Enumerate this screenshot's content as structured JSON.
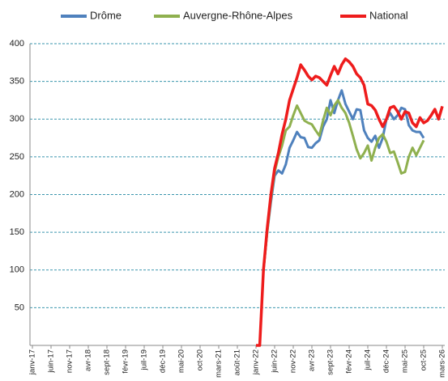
{
  "chart_data": {
    "type": "line",
    "categories": [
      "janv-17",
      null,
      null,
      null,
      null,
      "juin-17",
      null,
      null,
      null,
      null,
      "nov-17",
      null,
      null,
      null,
      null,
      "avr-18",
      null,
      null,
      null,
      null,
      "sept-18",
      null,
      null,
      null,
      null,
      "févr-19",
      null,
      null,
      null,
      null,
      "juil-19",
      null,
      null,
      null,
      null,
      "déc-19",
      null,
      null,
      null,
      null,
      "mai-20",
      null,
      null,
      null,
      null,
      "oct-20",
      null,
      null,
      null,
      null,
      "mars-21",
      null,
      null,
      null,
      null,
      "août-21",
      null,
      null,
      null,
      null,
      "janv-22",
      null,
      null,
      null,
      null,
      "juin-22",
      null,
      null,
      null,
      null,
      "nov-22",
      null,
      null,
      null,
      null,
      "avr-23",
      null,
      null,
      null,
      null,
      "sept-23",
      null,
      null,
      null,
      null,
      "févr-24",
      null,
      null,
      null,
      null,
      "juil-24",
      null,
      null,
      null,
      null,
      "déc-24",
      null,
      null,
      null,
      null,
      "mai-25",
      null,
      null,
      null,
      null,
      "oct-25",
      null,
      null,
      null,
      null,
      "mars-26"
    ],
    "series": [
      {
        "name": "Drôme",
        "color": "#4f81bd",
        "values": [
          null,
          null,
          null,
          null,
          null,
          null,
          null,
          null,
          null,
          null,
          null,
          null,
          null,
          null,
          null,
          null,
          null,
          null,
          null,
          null,
          null,
          null,
          null,
          null,
          null,
          null,
          null,
          null,
          null,
          null,
          null,
          null,
          null,
          null,
          null,
          null,
          null,
          null,
          null,
          null,
          null,
          null,
          null,
          null,
          null,
          null,
          null,
          null,
          null,
          null,
          null,
          null,
          null,
          null,
          null,
          null,
          null,
          null,
          null,
          null,
          null,
          null,
          100,
          150,
          190,
          225,
          232,
          228,
          240,
          262,
          272,
          283,
          276,
          275,
          263,
          262,
          268,
          272,
          290,
          300,
          325,
          308,
          325,
          338,
          320,
          310,
          300,
          313,
          312,
          285,
          275,
          270,
          278,
          262,
          275,
          300,
          308,
          300,
          305,
          315,
          313,
          292,
          285,
          283,
          283,
          275,
          null,
          null,
          null,
          null,
          null
        ]
      },
      {
        "name": "Auvergne-Rhône-Alpes",
        "color": "#8fb04f",
        "values": [
          null,
          null,
          null,
          null,
          null,
          null,
          null,
          null,
          null,
          null,
          null,
          null,
          null,
          null,
          null,
          null,
          null,
          null,
          null,
          null,
          null,
          null,
          null,
          null,
          null,
          null,
          null,
          null,
          null,
          null,
          null,
          null,
          null,
          null,
          null,
          null,
          null,
          null,
          null,
          null,
          null,
          null,
          null,
          null,
          null,
          null,
          null,
          null,
          null,
          null,
          null,
          null,
          null,
          null,
          null,
          null,
          null,
          null,
          null,
          null,
          null,
          null,
          100,
          150,
          195,
          230,
          250,
          265,
          285,
          290,
          305,
          318,
          308,
          298,
          295,
          293,
          285,
          278,
          298,
          315,
          305,
          318,
          325,
          315,
          308,
          295,
          278,
          260,
          248,
          255,
          265,
          245,
          262,
          275,
          280,
          270,
          255,
          257,
          243,
          228,
          230,
          250,
          262,
          252,
          262,
          272,
          null,
          null,
          null,
          null,
          null
        ]
      },
      {
        "name": "National",
        "color": "#ee1c1c",
        "values": [
          null,
          null,
          null,
          null,
          null,
          null,
          null,
          null,
          null,
          null,
          null,
          null,
          null,
          null,
          null,
          null,
          null,
          null,
          null,
          null,
          null,
          null,
          null,
          null,
          null,
          null,
          null,
          null,
          null,
          null,
          null,
          null,
          null,
          null,
          null,
          null,
          null,
          null,
          null,
          null,
          null,
          null,
          null,
          null,
          null,
          null,
          null,
          null,
          null,
          null,
          null,
          null,
          null,
          null,
          null,
          null,
          null,
          null,
          null,
          null,
          0,
          0,
          100,
          155,
          200,
          235,
          255,
          280,
          300,
          325,
          340,
          355,
          372,
          365,
          357,
          352,
          357,
          355,
          350,
          345,
          358,
          370,
          360,
          372,
          380,
          376,
          370,
          360,
          355,
          345,
          320,
          318,
          312,
          300,
          290,
          300,
          315,
          317,
          310,
          300,
          310,
          308,
          295,
          290,
          302,
          295,
          298,
          305,
          313,
          300,
          317
        ]
      }
    ],
    "ylim": [
      0,
      400
    ],
    "yticks": [
      50,
      100,
      150,
      200,
      250,
      300,
      350,
      400
    ],
    "grid": true,
    "legend": "top"
  }
}
